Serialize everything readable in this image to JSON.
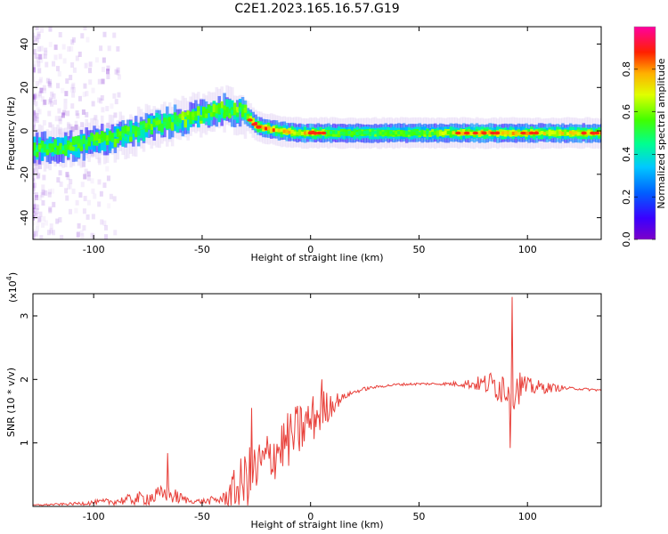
{
  "title": "C2E1.2023.165.16.57.G19",
  "colors": {
    "snr_line": "#e8403a",
    "axes": "#000000",
    "background": "#ffffff",
    "colorbar_stops": [
      "#7b00c8",
      "#3a00ff",
      "#0060ff",
      "#00c8ff",
      "#00ff80",
      "#60ff00",
      "#e0ff00",
      "#ffb000",
      "#ff3000",
      "#ff00a0"
    ]
  },
  "chart_data": [
    {
      "type": "heatmap",
      "title": "",
      "xlabel": "Height of straight line (km)",
      "ylabel": "Frequency (Hz)",
      "xlim": [
        -128,
        134
      ],
      "ylim": [
        -50,
        48
      ],
      "xticks": [
        -100,
        -50,
        0,
        50,
        100
      ],
      "yticks": [
        -40,
        -20,
        0,
        20,
        40
      ],
      "colorbar": {
        "label": "Normalized spectral amplitude",
        "range": [
          0.0,
          1.0
        ],
        "ticks": [
          "0.0",
          "0.2",
          "0.4",
          "0.6",
          "0.8"
        ]
      },
      "ridge": {
        "description_values": "centre frequency (Hz) of the dominant spectral band vs height (km)",
        "x": [
          -120,
          -110,
          -100,
          -90,
          -80,
          -70,
          -60,
          -50,
          -40,
          -32,
          -25,
          -15,
          -5,
          0,
          10,
          25,
          50,
          75,
          100,
          120,
          134
        ],
        "freq": [
          -8,
          -7,
          -5,
          -3,
          0,
          3,
          5,
          8,
          10,
          9,
          2,
          0,
          -1,
          -1,
          -1,
          -1,
          -1,
          -1,
          -1,
          -1,
          -1
        ],
        "peak_amplitude": [
          0.3,
          0.35,
          0.4,
          0.45,
          0.5,
          0.55,
          0.6,
          0.6,
          0.55,
          0.6,
          0.9,
          0.75,
          0.7,
          0.85,
          0.45,
          0.5,
          0.55,
          0.75,
          0.75,
          0.7,
          0.8
        ]
      }
    },
    {
      "type": "line",
      "title": "",
      "xlabel": "Height of straight line (km)",
      "ylabel": "SNR (10 * v/v)",
      "multiplier_label": "(x10",
      "multiplier_exponent": "4",
      "multiplier_close": ")",
      "xlim": [
        -128,
        134
      ],
      "ylim": [
        0,
        3.35
      ],
      "xticks": [
        -100,
        -50,
        0,
        50,
        100
      ],
      "yticks": [
        1,
        2,
        3
      ],
      "series": [
        {
          "envelope": {
            "x": [
              -128,
              -110,
              -100,
              -90,
              -80,
              -72,
              -67,
              -62,
              -55,
              -48,
              -40,
              -35,
              -30,
              -25,
              -20,
              -15,
              -10,
              -5,
              0,
              5,
              10,
              15,
              20,
              25,
              30,
              40,
              50,
              60,
              70,
              80,
              85,
              90,
              93,
              96,
              100,
              110,
              120,
              134
            ],
            "base": [
              0.02,
              0.04,
              0.06,
              0.08,
              0.12,
              0.15,
              0.2,
              0.15,
              0.08,
              0.08,
              0.12,
              0.25,
              0.4,
              0.55,
              0.75,
              0.9,
              1.05,
              1.2,
              1.35,
              1.5,
              1.62,
              1.72,
              1.8,
              1.85,
              1.88,
              1.92,
              1.93,
              1.93,
              1.93,
              1.93,
              1.92,
              1.9,
              1.9,
              1.9,
              1.88,
              1.87,
              1.86,
              1.83
            ],
            "noise": [
              0.01,
              0.02,
              0.04,
              0.06,
              0.1,
              0.14,
              0.15,
              0.12,
              0.03,
              0.05,
              0.1,
              0.35,
              0.5,
              0.5,
              0.45,
              0.45,
              0.45,
              0.45,
              0.4,
              0.35,
              0.2,
              0.05,
              0.03,
              0.03,
              0.02,
              0.02,
              0.02,
              0.02,
              0.05,
              0.15,
              0.25,
              0.35,
              0.4,
              0.3,
              0.15,
              0.08,
              0.02,
              0.02
            ]
          },
          "peaks": [
            {
              "x": -66,
              "y": 0.84
            },
            {
              "x": -27,
              "y": 1.55
            },
            {
              "x": 5,
              "y": 2.0
            },
            {
              "x": 93,
              "y": 3.3
            },
            {
              "x": 92,
              "y": 0.92
            }
          ]
        }
      ]
    }
  ]
}
